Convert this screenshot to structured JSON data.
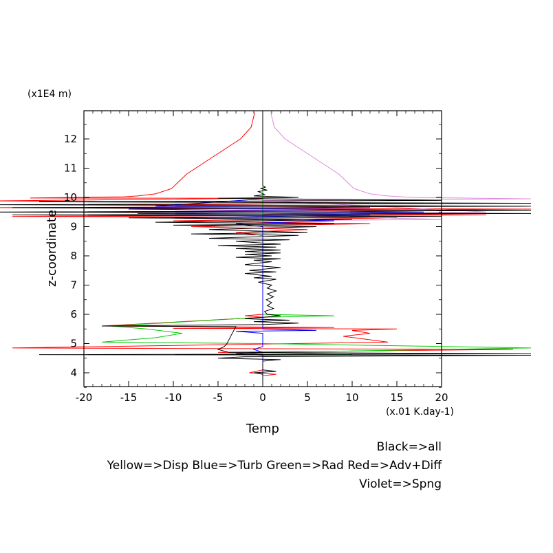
{
  "chart_data": {
    "type": "line",
    "xlabel": "Temp",
    "ylabel": "z-coordinate",
    "x_unit": "(x.01 K.day-1)",
    "y_unit": "(x1E4 m)",
    "xlim": [
      -20,
      20
    ],
    "ylim": [
      3.5,
      12.9
    ],
    "xticks": [
      -20,
      -15,
      -10,
      -5,
      0,
      5,
      10,
      15,
      20
    ],
    "yticks": [
      4,
      5,
      6,
      7,
      8,
      9,
      10,
      11,
      12
    ],
    "legend": [
      "Black=>all",
      "Yellow=>Disp Blue=>Turb Green=>Rad Red=>Adv+Diff",
      "Violet=>Spng"
    ],
    "series": [
      {
        "name": "Adv+Diff",
        "color": "#ff0000",
        "points": [
          [
            -0.9,
            12.9
          ],
          [
            -1.3,
            12.4
          ],
          [
            -2.5,
            12.0
          ],
          [
            -4.5,
            11.6
          ],
          [
            -6.5,
            11.2
          ],
          [
            -8.5,
            10.8
          ],
          [
            -9.7,
            10.45
          ],
          [
            -10.2,
            10.3
          ],
          [
            -12,
            10.12
          ],
          [
            -14,
            10.05
          ],
          [
            -15.5,
            10.02
          ],
          [
            -26,
            9.98
          ],
          [
            0,
            9.97
          ],
          [
            -30,
            9.88
          ],
          [
            18,
            9.8
          ],
          [
            -15,
            9.75
          ],
          [
            25,
            9.7
          ],
          [
            -30,
            9.65
          ],
          [
            30,
            9.6
          ],
          [
            -20,
            9.5
          ],
          [
            25,
            9.4
          ],
          [
            -28,
            9.35
          ],
          [
            15,
            9.3
          ],
          [
            -10,
            9.2
          ],
          [
            12,
            9.1
          ],
          [
            -8,
            9.0
          ],
          [
            5,
            8.9
          ],
          [
            -3,
            8.8
          ],
          [
            0,
            8.7
          ],
          [
            0,
            6.0
          ],
          [
            -2,
            5.95
          ],
          [
            0,
            5.9
          ],
          [
            -18,
            5.6
          ],
          [
            8,
            5.55
          ],
          [
            -10,
            5.52
          ],
          [
            15,
            5.5
          ],
          [
            10,
            5.45
          ],
          [
            12,
            5.35
          ],
          [
            9,
            5.25
          ],
          [
            14,
            5.05
          ],
          [
            -28,
            4.85
          ],
          [
            28,
            4.8
          ],
          [
            -5,
            4.7
          ],
          [
            0,
            4.65
          ],
          [
            0,
            4.1
          ],
          [
            -1.5,
            4.0
          ],
          [
            1.5,
            3.95
          ],
          [
            0,
            3.9
          ],
          [
            0,
            3.5
          ]
        ]
      },
      {
        "name": "Spng",
        "color": "#dd88dd",
        "points": [
          [
            0.9,
            12.9
          ],
          [
            1.3,
            12.4
          ],
          [
            2.5,
            12.0
          ],
          [
            4.5,
            11.6
          ],
          [
            6.5,
            11.2
          ],
          [
            8.5,
            10.8
          ],
          [
            9.7,
            10.45
          ],
          [
            10.2,
            10.3
          ],
          [
            12,
            10.12
          ],
          [
            14,
            10.05
          ],
          [
            15.5,
            10.02
          ],
          [
            16.5,
            10.0
          ],
          [
            30,
            9.95
          ],
          [
            0,
            9.9
          ],
          [
            25,
            9.5
          ],
          [
            0,
            9.4
          ],
          [
            20,
            9.25
          ],
          [
            0,
            9.2
          ]
        ]
      },
      {
        "name": "Rad",
        "color": "#00cc00",
        "points": [
          [
            0,
            12.9
          ],
          [
            0,
            6.0
          ],
          [
            8,
            5.95
          ],
          [
            0,
            5.9
          ],
          [
            -17,
            5.6
          ],
          [
            -13,
            5.5
          ],
          [
            -9,
            5.35
          ],
          [
            -12,
            5.2
          ],
          [
            -18,
            5.05
          ],
          [
            0,
            5.0
          ],
          [
            30,
            4.85
          ],
          [
            0,
            4.7
          ],
          [
            10,
            4.62
          ],
          [
            0,
            4.6
          ],
          [
            0,
            3.5
          ]
        ]
      },
      {
        "name": "Turb",
        "color": "#0000ff",
        "points": [
          [
            0,
            9.95
          ],
          [
            -12,
            9.7
          ],
          [
            12,
            9.65
          ],
          [
            -15,
            9.6
          ],
          [
            18,
            9.5
          ],
          [
            -14,
            9.45
          ],
          [
            12,
            9.4
          ],
          [
            -10,
            9.3
          ],
          [
            8,
            9.2
          ],
          [
            -3,
            9.1
          ],
          [
            0,
            9.0
          ],
          [
            0,
            5.5
          ],
          [
            6,
            5.45
          ],
          [
            -3,
            5.42
          ],
          [
            0,
            5.35
          ],
          [
            0,
            4.9
          ],
          [
            -1,
            4.8
          ],
          [
            0,
            4.7
          ],
          [
            -3,
            4.65
          ],
          [
            0,
            4.6
          ],
          [
            0,
            3.5
          ]
        ]
      },
      {
        "name": "all",
        "color": "#000000",
        "points": [
          [
            0,
            12.9
          ],
          [
            0,
            10.4
          ],
          [
            0.3,
            10.35
          ],
          [
            -0.2,
            10.3
          ],
          [
            0.5,
            10.25
          ],
          [
            -0.5,
            10.2
          ],
          [
            0.2,
            10.1
          ],
          [
            -1,
            10.05
          ],
          [
            4,
            10.0
          ],
          [
            -5,
            9.97
          ],
          [
            20,
            9.9
          ],
          [
            -25,
            9.85
          ],
          [
            30,
            9.8
          ],
          [
            -30,
            9.75
          ],
          [
            30,
            9.7
          ],
          [
            -28,
            9.65
          ],
          [
            30,
            9.55
          ],
          [
            -30,
            9.5
          ],
          [
            30,
            9.45
          ],
          [
            -28,
            9.4
          ],
          [
            20,
            9.35
          ],
          [
            -15,
            9.3
          ],
          [
            10,
            9.25
          ],
          [
            -12,
            9.15
          ],
          [
            8,
            9.1
          ],
          [
            -10,
            9.05
          ],
          [
            6,
            9.0
          ],
          [
            -6,
            8.9
          ],
          [
            5,
            8.8
          ],
          [
            -8,
            8.75
          ],
          [
            4,
            8.7
          ],
          [
            -6,
            8.6
          ],
          [
            3,
            8.55
          ],
          [
            -3,
            8.5
          ],
          [
            2,
            8.4
          ],
          [
            -5,
            8.35
          ],
          [
            1.5,
            8.3
          ],
          [
            -3,
            8.25
          ],
          [
            2,
            8.2
          ],
          [
            -2,
            8.15
          ],
          [
            2,
            8.1
          ],
          [
            -2,
            8.05
          ],
          [
            1,
            8.0
          ],
          [
            -3,
            7.95
          ],
          [
            2,
            7.9
          ],
          [
            -1,
            7.85
          ],
          [
            1,
            7.8
          ],
          [
            -2,
            7.7
          ],
          [
            2,
            7.6
          ],
          [
            -1.5,
            7.5
          ],
          [
            1.5,
            7.45
          ],
          [
            -2,
            7.4
          ],
          [
            1,
            7.3
          ],
          [
            -1,
            7.25
          ],
          [
            1.5,
            7.2
          ],
          [
            -0.5,
            7.1
          ],
          [
            1,
            7.0
          ],
          [
            0.5,
            6.9
          ],
          [
            1.5,
            6.8
          ],
          [
            0.5,
            6.7
          ],
          [
            1.2,
            6.6
          ],
          [
            0.4,
            6.5
          ],
          [
            1,
            6.4
          ],
          [
            0.5,
            6.3
          ],
          [
            1.2,
            6.2
          ],
          [
            0.2,
            6.1
          ],
          [
            0.5,
            6.0
          ],
          [
            2,
            5.95
          ],
          [
            -2,
            5.85
          ],
          [
            3,
            5.8
          ],
          [
            -1,
            5.75
          ],
          [
            4,
            5.7
          ],
          [
            0,
            5.65
          ],
          [
            -18,
            5.6
          ],
          [
            -3,
            5.58
          ],
          [
            -3.5,
            5.3
          ],
          [
            -4,
            5.0
          ],
          [
            -4.3,
            4.9
          ],
          [
            -5,
            4.8
          ],
          [
            -3.8,
            4.7
          ],
          [
            30,
            4.65
          ],
          [
            -25,
            4.62
          ],
          [
            30,
            4.6
          ],
          [
            -2,
            4.55
          ],
          [
            -5,
            4.5
          ],
          [
            2,
            4.45
          ],
          [
            0,
            4.4
          ],
          [
            0,
            4.1
          ],
          [
            1.5,
            4.05
          ],
          [
            -1,
            4.0
          ],
          [
            0,
            3.95
          ],
          [
            0,
            3.5
          ]
        ]
      }
    ]
  }
}
